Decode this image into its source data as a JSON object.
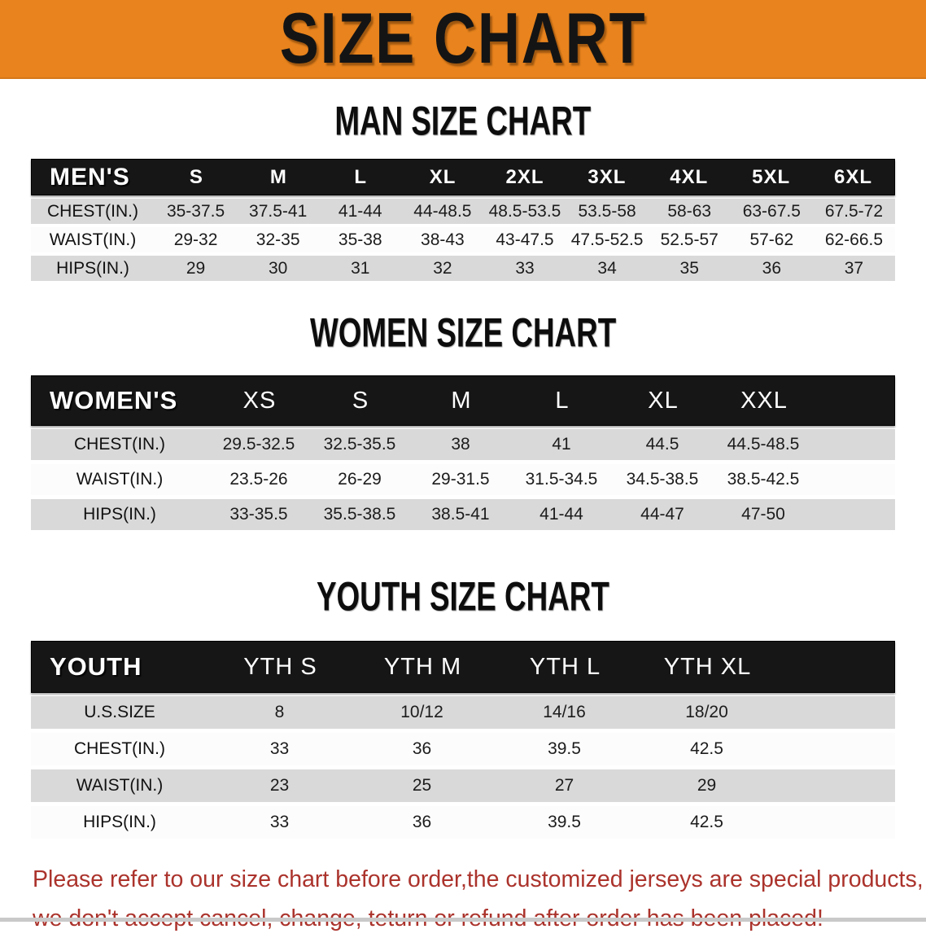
{
  "banner": {
    "title": "SIZE CHART",
    "bg_color": "#e8831d",
    "text_color": "#141414"
  },
  "sections": [
    {
      "name": "men",
      "heading": "MAN SIZE CHART",
      "table": {
        "header_label": "MEN'S",
        "columns": [
          "S",
          "M",
          "L",
          "XL",
          "2XL",
          "3XL",
          "4XL",
          "5XL",
          "6XL"
        ],
        "rows": [
          {
            "label": "CHEST(IN.)",
            "values": [
              "35-37.5",
              "37.5-41",
              "41-44",
              "44-48.5",
              "48.5-53.5",
              "53.5-58",
              "58-63",
              "63-67.5",
              "67.5-72"
            ]
          },
          {
            "label": "WAIST(IN.)",
            "values": [
              "29-32",
              "32-35",
              "35-38",
              "38-43",
              "43-47.5",
              "47.5-52.5",
              "52.5-57",
              "57-62",
              "62-66.5"
            ]
          },
          {
            "label": "HIPS(IN.)",
            "values": [
              "29",
              "30",
              "31",
              "32",
              "33",
              "34",
              "35",
              "36",
              "37"
            ]
          }
        ]
      }
    },
    {
      "name": "women",
      "heading": "WOMEN SIZE CHART",
      "table": {
        "header_label": "WOMEN'S",
        "columns": [
          "XS",
          "S",
          "M",
          "L",
          "XL",
          "XXL"
        ],
        "rows": [
          {
            "label": "CHEST(IN.)",
            "values": [
              "29.5-32.5",
              "32.5-35.5",
              "38",
              "41",
              "44.5",
              "44.5-48.5"
            ]
          },
          {
            "label": "WAIST(IN.)",
            "values": [
              "23.5-26",
              "26-29",
              "29-31.5",
              "31.5-34.5",
              "34.5-38.5",
              "38.5-42.5"
            ]
          },
          {
            "label": "HIPS(IN.)",
            "values": [
              "33-35.5",
              "35.5-38.5",
              "38.5-41",
              "41-44",
              "44-47",
              "47-50"
            ]
          }
        ]
      }
    },
    {
      "name": "youth",
      "heading": "YOUTH SIZE CHART",
      "table": {
        "header_label": "YOUTH",
        "columns": [
          "YTH S",
          "YTH M",
          "YTH L",
          "YTH XL"
        ],
        "rows": [
          {
            "label": "U.S.SIZE",
            "values": [
              "8",
              "10/12",
              "14/16",
              "18/20"
            ]
          },
          {
            "label": "CHEST(IN.)",
            "values": [
              "33",
              "36",
              "39.5",
              "42.5"
            ]
          },
          {
            "label": "WAIST(IN.)",
            "values": [
              "23",
              "25",
              "27",
              "29"
            ]
          },
          {
            "label": "HIPS(IN.)",
            "values": [
              "33",
              "36",
              "39.5",
              "42.5"
            ]
          }
        ]
      }
    }
  ],
  "footer": {
    "line1": "Please refer to our size chart before order,the customized jerseys are special products,",
    "line2": "we don't accept cancel, change, teturn or refund after order has been placed!",
    "text_color": "#ab332c"
  },
  "colors": {
    "banner_orange": "#e8831d",
    "table_header_black": "#161616",
    "row_stripe_gray": "#d9d9d9",
    "row_stripe_white": "#fcfcfc",
    "disclaimer_red": "#ab332c"
  }
}
